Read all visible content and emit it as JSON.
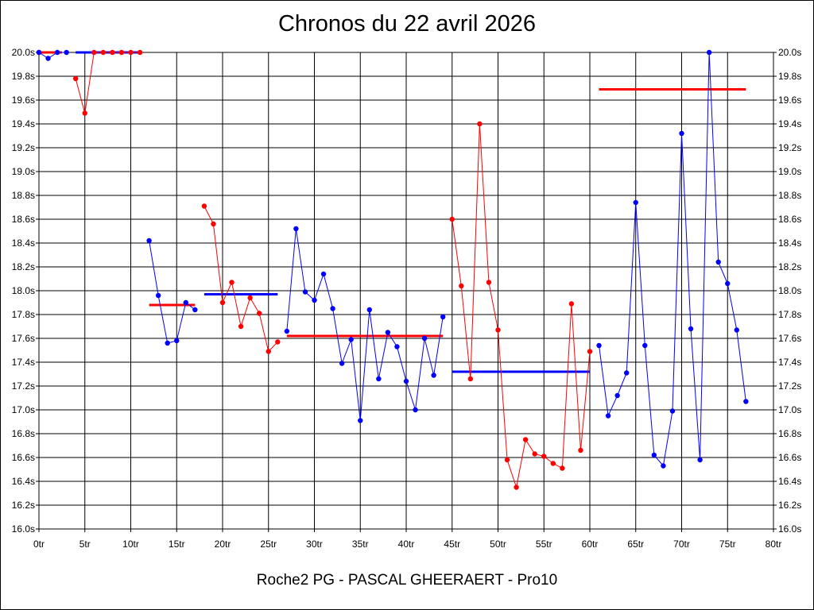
{
  "chart_data": {
    "type": "line",
    "title": "Chronos du 22 avril 2026",
    "footer": "Roche2 PG - PASCAL GHEERAERT - Pro10",
    "x_unit": "tr",
    "y_unit": "s",
    "xlim": [
      0,
      80
    ],
    "ylim": [
      16.0,
      20.0
    ],
    "x_ticks": [
      0,
      5,
      10,
      15,
      20,
      25,
      30,
      35,
      40,
      45,
      50,
      55,
      60,
      65,
      70,
      75,
      80
    ],
    "y_ticks": [
      16.0,
      16.2,
      16.4,
      16.6,
      16.8,
      17.0,
      17.2,
      17.4,
      17.6,
      17.8,
      18.0,
      18.2,
      18.4,
      18.6,
      18.8,
      19.0,
      19.2,
      19.4,
      19.6,
      19.8,
      20.0
    ],
    "x_tick_labels": [
      "0tr",
      "5tr",
      "10tr",
      "15tr",
      "20tr",
      "25tr",
      "30tr",
      "35tr",
      "40tr",
      "45tr",
      "50tr",
      "55tr",
      "60tr",
      "65tr",
      "70tr",
      "75tr",
      "80tr"
    ],
    "y_tick_labels": [
      "16.0s",
      "16.2s",
      "16.4s",
      "16.6s",
      "16.8s",
      "17.0s",
      "17.2s",
      "17.4s",
      "17.6s",
      "17.8s",
      "18.0s",
      "18.2s",
      "18.4s",
      "18.6s",
      "18.8s",
      "19.0s",
      "19.2s",
      "19.4s",
      "19.6s",
      "19.8s",
      "20.0s"
    ],
    "grid": true,
    "y_axis_both_sides": true,
    "colors": {
      "red": "#ff0000",
      "blue": "#0000ff"
    },
    "series": [
      {
        "color": "red",
        "points": [
          [
            0,
            20.0
          ]
        ]
      },
      {
        "color": "blue",
        "points": [
          [
            0,
            20.0
          ],
          [
            1,
            19.95
          ],
          [
            2,
            20.0
          ],
          [
            3,
            20.0
          ]
        ]
      },
      {
        "color": "red",
        "points": [
          [
            4,
            19.78
          ],
          [
            5,
            19.49
          ],
          [
            6,
            20.0
          ],
          [
            7,
            20.0
          ],
          [
            8,
            20.0
          ],
          [
            9,
            20.0
          ],
          [
            10,
            20.0
          ],
          [
            11,
            20.0
          ]
        ]
      },
      {
        "color": "blue",
        "points": [
          [
            12,
            18.42
          ],
          [
            13,
            17.96
          ],
          [
            14,
            17.56
          ],
          [
            15,
            17.58
          ],
          [
            16,
            17.9
          ],
          [
            17,
            17.84
          ]
        ]
      },
      {
        "color": "red",
        "points": [
          [
            18,
            18.71
          ],
          [
            19,
            18.56
          ],
          [
            20,
            17.9
          ],
          [
            21,
            18.07
          ],
          [
            22,
            17.7
          ],
          [
            23,
            17.94
          ],
          [
            24,
            17.81
          ],
          [
            25,
            17.49
          ],
          [
            26,
            17.57
          ]
        ]
      },
      {
        "color": "blue",
        "points": [
          [
            27,
            17.66
          ],
          [
            28,
            18.52
          ],
          [
            29,
            17.99
          ],
          [
            30,
            17.92
          ],
          [
            31,
            18.14
          ],
          [
            32,
            17.85
          ],
          [
            33,
            17.39
          ],
          [
            34,
            17.59
          ],
          [
            35,
            16.91
          ],
          [
            36,
            17.84
          ],
          [
            37,
            17.26
          ],
          [
            38,
            17.65
          ],
          [
            39,
            17.53
          ],
          [
            40,
            17.24
          ],
          [
            41,
            17.0
          ],
          [
            42,
            17.6
          ],
          [
            43,
            17.29
          ],
          [
            44,
            17.78
          ]
        ]
      },
      {
        "color": "red",
        "points": [
          [
            45,
            18.6
          ],
          [
            46,
            18.04
          ],
          [
            47,
            17.26
          ],
          [
            48,
            19.4
          ],
          [
            49,
            18.07
          ],
          [
            50,
            17.67
          ],
          [
            51,
            16.58
          ],
          [
            52,
            16.35
          ],
          [
            53,
            16.75
          ],
          [
            54,
            16.63
          ],
          [
            55,
            16.61
          ],
          [
            56,
            16.55
          ],
          [
            57,
            16.51
          ],
          [
            58,
            17.89
          ],
          [
            59,
            16.66
          ],
          [
            60,
            17.49
          ]
        ]
      },
      {
        "color": "blue",
        "points": [
          [
            61,
            17.54
          ],
          [
            62,
            16.95
          ],
          [
            63,
            17.12
          ],
          [
            64,
            17.31
          ],
          [
            65,
            18.74
          ],
          [
            66,
            17.54
          ],
          [
            67,
            16.62
          ],
          [
            68,
            16.53
          ],
          [
            69,
            16.99
          ],
          [
            70,
            19.32
          ],
          [
            71,
            17.68
          ],
          [
            72,
            16.58
          ],
          [
            73,
            20.0
          ],
          [
            74,
            18.24
          ],
          [
            75,
            18.06
          ],
          [
            76,
            17.67
          ],
          [
            77,
            17.07
          ]
        ]
      }
    ],
    "averages": [
      {
        "color": "red",
        "x": [
          0,
          2.5
        ],
        "y": 20.0
      },
      {
        "color": "blue",
        "x": [
          4,
          11
        ],
        "y": 20.0
      },
      {
        "color": "red",
        "x": [
          12,
          17
        ],
        "y": 17.88
      },
      {
        "color": "blue",
        "x": [
          18,
          26
        ],
        "y": 17.97
      },
      {
        "color": "red",
        "x": [
          27,
          44
        ],
        "y": 17.62
      },
      {
        "color": "blue",
        "x": [
          45,
          60
        ],
        "y": 17.32
      },
      {
        "color": "red",
        "x": [
          61,
          77
        ],
        "y": 19.69
      }
    ]
  }
}
